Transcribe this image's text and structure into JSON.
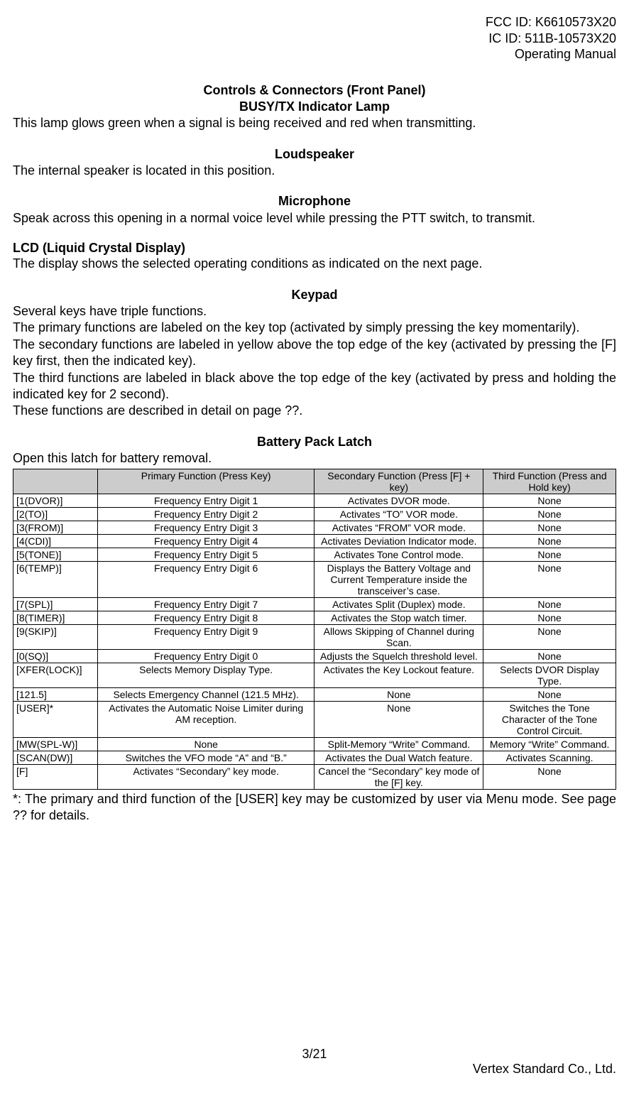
{
  "header": {
    "fcc": "FCC ID: K6610573X20",
    "ic": "IC ID: 511B-10573X20",
    "manual": "Operating Manual"
  },
  "sections": {
    "controls_title": "Controls & Connectors (Front Panel)",
    "busy_tx_heading": "BUSY/TX Indicator Lamp",
    "busy_tx_body": "This lamp glows green when a signal is being received and red when transmitting.",
    "loudspeaker_heading": "Loudspeaker",
    "loudspeaker_body": "The internal speaker is located in this position.",
    "microphone_heading": "Microphone",
    "microphone_body": "Speak across this opening in a normal voice level while pressing the PTT switch, to transmit.",
    "lcd_heading": "LCD (Liquid Crystal Display)",
    "lcd_body": "The display shows the selected operating conditions as indicated on the next page.",
    "keypad_heading": "Keypad",
    "keypad_body_1": "Several keys have triple functions.",
    "keypad_body_2": "The primary functions are labeled on the key top (activated by simply pressing the key momentarily).",
    "keypad_body_3": "The secondary functions are labeled in yellow above the top edge of the key (activated by pressing the [F] key first, then the indicated key).",
    "keypad_body_4": "The third functions are labeled in black above the top edge of the key (activated by press and holding the indicated key for 2 second).",
    "keypad_body_5": "These functions are described in detail on page ??.",
    "battery_heading": "Battery Pack Latch",
    "battery_body": "Open this latch for battery removal."
  },
  "table": {
    "headers": {
      "blank": "",
      "primary": "Primary Function (Press Key)",
      "secondary": "Secondary Function (Press [F] + key)",
      "third": "Third Function (Press and Hold key)"
    },
    "rows": [
      {
        "key": "[1(DVOR)]",
        "primary": "Frequency Entry Digit 1",
        "secondary": "Activates DVOR mode.",
        "third": "None"
      },
      {
        "key": "[2(TO)]",
        "primary": "Frequency Entry Digit 2",
        "secondary": "Activates “TO” VOR mode.",
        "third": "None"
      },
      {
        "key": "[3(FROM)]",
        "primary": "Frequency Entry Digit 3",
        "secondary": "Activates “FROM” VOR mode.",
        "third": "None"
      },
      {
        "key": "[4(CDI)]",
        "primary": "Frequency Entry Digit 4",
        "secondary": "Activates Deviation Indicator mode.",
        "third": "None"
      },
      {
        "key": "[5(TONE)]",
        "primary": "Frequency Entry Digit 5",
        "secondary": "Activates Tone Control mode.",
        "third": "None"
      },
      {
        "key": "[6(TEMP)]",
        "primary": "Frequency Entry Digit 6",
        "secondary": "Displays the Battery Voltage and Current Temperature inside the transceiver’s case.",
        "third": "None"
      },
      {
        "key": "[7(SPL)]",
        "primary": "Frequency Entry Digit 7",
        "secondary": "Activates Split (Duplex) mode.",
        "third": "None"
      },
      {
        "key": "[8(TIMER)]",
        "primary": "Frequency Entry Digit 8",
        "secondary": "Activates the Stop watch timer.",
        "third": "None"
      },
      {
        "key": "[9(SKIP)]",
        "primary": "Frequency Entry Digit 9",
        "secondary": "Allows Skipping of Channel during Scan.",
        "third": "None"
      },
      {
        "key": "[0(SQ)]",
        "primary": "Frequency Entry Digit 0",
        "secondary": "Adjusts the Squelch threshold level.",
        "third": "None"
      },
      {
        "key": "[XFER(LOCK)]",
        "primary": "Selects Memory Display Type.",
        "secondary": "Activates the Key Lockout feature.",
        "third": "Selects DVOR Display Type."
      },
      {
        "key": "[121.5]",
        "primary": "Selects Emergency Channel (121.5 MHz).",
        "secondary": "None",
        "third": "None"
      },
      {
        "key": "[USER]*",
        "primary": "Activates the Automatic Noise Limiter during AM reception.",
        "secondary": "None",
        "third": "Switches the Tone Character of the Tone Control Circuit."
      },
      {
        "key": "[MW(SPL-W)]",
        "primary": "None",
        "secondary": "Split-Memory “Write” Command.",
        "third": "Memory “Write” Command."
      },
      {
        "key": "[SCAN(DW)]",
        "primary": "Switches the VFO mode “A” and “B.”",
        "secondary": "Activates the Dual Watch feature.",
        "third": "Activates Scanning."
      },
      {
        "key": "[F]",
        "primary": "Activates “Secondary” key mode.",
        "secondary": "Cancel the “Secondary” key mode of the [F] key.",
        "third": "None"
      }
    ]
  },
  "footnote": "*: The primary and third function of the [USER] key may be customized by user via Menu mode. See page ?? for details.",
  "footer": {
    "page": "3/21",
    "company": "Vertex Standard Co., Ltd."
  },
  "style": {
    "body_font_size_pt": 14,
    "table_font_size_pt": 11,
    "table_header_bg": "#cccccc",
    "text_color": "#000000",
    "background": "#ffffff"
  }
}
